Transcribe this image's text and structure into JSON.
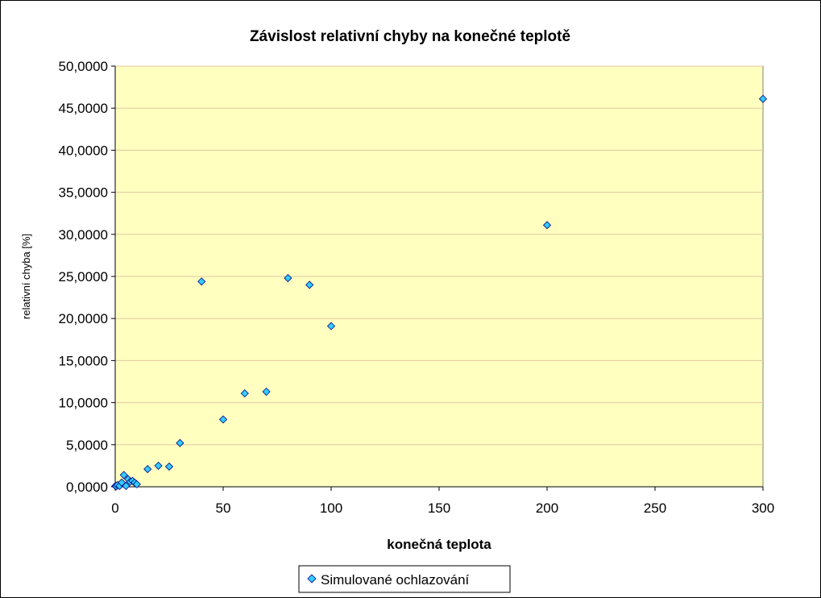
{
  "chart_data": {
    "type": "scatter",
    "title": "Závislost relativní chyby na konečné teplotě",
    "xlabel": "konečná teplota",
    "ylabel": "relativní chyba [%]",
    "xlim": [
      0,
      300
    ],
    "ylim": [
      0,
      50
    ],
    "x_ticks": [
      0,
      50,
      100,
      150,
      200,
      250,
      300
    ],
    "x_tick_labels": [
      "0",
      "50",
      "100",
      "150",
      "200",
      "250",
      "300"
    ],
    "y_ticks": [
      0,
      5,
      10,
      15,
      20,
      25,
      30,
      35,
      40,
      45,
      50
    ],
    "y_tick_labels": [
      "0,0000",
      "5,0000",
      "10,0000",
      "15,0000",
      "20,0000",
      "25,0000",
      "30,0000",
      "35,0000",
      "40,0000",
      "45,0000",
      "50,0000"
    ],
    "grid": "horizontal",
    "legend_position": "bottom",
    "plot_background": "#FFFFC0",
    "marker_color": "#33CCFF",
    "series": [
      {
        "name": "Simulované ochlazování",
        "points": [
          {
            "x": 0.1,
            "y": 0.1
          },
          {
            "x": 0.5,
            "y": 0.05
          },
          {
            "x": 1,
            "y": 0.2
          },
          {
            "x": 2,
            "y": 0.1
          },
          {
            "x": 3,
            "y": 0.5
          },
          {
            "x": 4,
            "y": 1.4
          },
          {
            "x": 5,
            "y": 0.1
          },
          {
            "x": 6,
            "y": 0.9
          },
          {
            "x": 7,
            "y": 0.6
          },
          {
            "x": 8,
            "y": 0.7
          },
          {
            "x": 9,
            "y": 0.5
          },
          {
            "x": 10,
            "y": 0.3
          },
          {
            "x": 15,
            "y": 2.1
          },
          {
            "x": 20,
            "y": 2.5
          },
          {
            "x": 25,
            "y": 2.4
          },
          {
            "x": 30,
            "y": 5.2
          },
          {
            "x": 40,
            "y": 24.4
          },
          {
            "x": 50,
            "y": 8.0
          },
          {
            "x": 60,
            "y": 11.1
          },
          {
            "x": 70,
            "y": 11.3
          },
          {
            "x": 80,
            "y": 24.8
          },
          {
            "x": 90,
            "y": 24.0
          },
          {
            "x": 100,
            "y": 19.1
          },
          {
            "x": 200,
            "y": 31.1
          },
          {
            "x": 300,
            "y": 46.1
          }
        ]
      }
    ]
  }
}
